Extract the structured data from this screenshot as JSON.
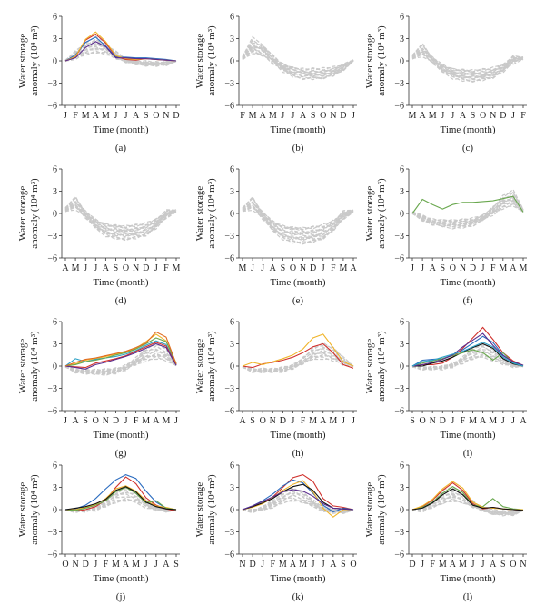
{
  "figure": {
    "y_label_line1": "Water storage",
    "y_label_line2": "anomaly (10⁴ m³)"
  },
  "colors": {
    "background_series": "#c9c9c9",
    "highlight": [
      "#2a6bbf",
      "#d0312d",
      "#f0b429",
      "#6aa84f",
      "#5b2d8e",
      "#2fa3c7",
      "#e06b1f",
      "#111111"
    ]
  },
  "chart_data": [
    {
      "panel": "(a)",
      "type": "line",
      "xlabel": "Time (month)",
      "ylim": [
        -6,
        6
      ],
      "yticks": [
        "6",
        "3",
        "0",
        "−3",
        "−6"
      ],
      "categories": [
        "J",
        "F",
        "M",
        "A",
        "M",
        "J",
        "J",
        "A",
        "S",
        "O",
        "N",
        "D"
      ],
      "background_count": 14,
      "series": [
        {
          "values": [
            0,
            0.5,
            2.8,
            3.6,
            2.4,
            0.6,
            0.2,
            0.1,
            0.3,
            0.2,
            0.1,
            0
          ],
          "color": "#d0312d"
        },
        {
          "values": [
            0,
            0.8,
            2.5,
            3.2,
            2.0,
            0.5,
            0.5,
            0.4,
            0.4,
            0.3,
            0.2,
            0
          ],
          "color": "#2a6bbf"
        },
        {
          "values": [
            0,
            0.6,
            2.9,
            3.9,
            2.6,
            0.7,
            0.3,
            0.2,
            0.3,
            0.2,
            0.1,
            0
          ],
          "color": "#f0b429"
        },
        {
          "values": [
            0,
            0.4,
            1.8,
            2.6,
            1.9,
            0.4,
            0.4,
            0.3,
            0.3,
            0.2,
            0.1,
            0
          ],
          "color": "#5b2d8e"
        }
      ]
    },
    {
      "panel": "(b)",
      "type": "line",
      "xlabel": "Time (month)",
      "ylim": [
        -6,
        6
      ],
      "yticks": [
        "6",
        "3",
        "0",
        "−3",
        "−6"
      ],
      "categories": [
        "F",
        "M",
        "A",
        "M",
        "J",
        "J",
        "A",
        "S",
        "O",
        "N",
        "D",
        "J"
      ],
      "background_count": 16,
      "series": []
    },
    {
      "panel": "(c)",
      "type": "line",
      "xlabel": "Time (month)",
      "ylim": [
        -6,
        6
      ],
      "yticks": [
        "6",
        "3",
        "0",
        "−3",
        "−6"
      ],
      "categories": [
        "M",
        "A",
        "M",
        "J",
        "J",
        "A",
        "S",
        "O",
        "N",
        "D",
        "J",
        "F"
      ],
      "background_count": 16,
      "series": []
    },
    {
      "panel": "(d)",
      "type": "line",
      "xlabel": "Time (month)",
      "ylim": [
        -6,
        6
      ],
      "yticks": [
        "6",
        "3",
        "0",
        "−3",
        "−6"
      ],
      "categories": [
        "A",
        "M",
        "J",
        "J",
        "A",
        "S",
        "O",
        "N",
        "D",
        "J",
        "F",
        "M"
      ],
      "background_count": 16,
      "series": []
    },
    {
      "panel": "(e)",
      "type": "line",
      "xlabel": "Time (month)",
      "ylim": [
        -6,
        6
      ],
      "yticks": [
        "6",
        "3",
        "0",
        "−3",
        "−6"
      ],
      "categories": [
        "M",
        "J",
        "J",
        "A",
        "S",
        "O",
        "N",
        "D",
        "J",
        "F",
        "M",
        "A"
      ],
      "background_count": 16,
      "series": []
    },
    {
      "panel": "(f)",
      "type": "line",
      "xlabel": "Time (month)",
      "ylim": [
        -6,
        6
      ],
      "yticks": [
        "6",
        "3",
        "0",
        "−3",
        "−6"
      ],
      "categories": [
        "J",
        "J",
        "A",
        "S",
        "O",
        "N",
        "D",
        "J",
        "F",
        "M",
        "A",
        "M"
      ],
      "background_count": 16,
      "series": [
        {
          "values": [
            0,
            1.9,
            1.2,
            0.6,
            1.2,
            1.5,
            1.5,
            1.6,
            1.7,
            2.0,
            2.3,
            0.2
          ],
          "color": "#6aa84f"
        }
      ]
    },
    {
      "panel": "(g)",
      "type": "line",
      "xlabel": "Time (month)",
      "ylim": [
        -6,
        6
      ],
      "yticks": [
        "6",
        "3",
        "0",
        "−3",
        "−6"
      ],
      "categories": [
        "J",
        "A",
        "S",
        "O",
        "N",
        "D",
        "J",
        "F",
        "M",
        "A",
        "M",
        "J"
      ],
      "background_count": 12,
      "series": [
        {
          "values": [
            0,
            0.3,
            0.8,
            1.0,
            1.3,
            1.6,
            1.9,
            2.4,
            3.3,
            4.3,
            3.4,
            0.3
          ],
          "color": "#f0b429"
        },
        {
          "values": [
            0,
            1.0,
            0.6,
            0.9,
            1.1,
            1.3,
            1.6,
            2.1,
            2.8,
            3.4,
            2.9,
            0.2
          ],
          "color": "#2fa3c7"
        },
        {
          "values": [
            0,
            -0.1,
            -0.2,
            0.4,
            0.7,
            1.0,
            1.4,
            2.0,
            2.6,
            3.2,
            2.7,
            0.2
          ],
          "color": "#d0312d"
        },
        {
          "values": [
            0,
            0.2,
            0.6,
            0.8,
            1.1,
            1.5,
            1.8,
            2.3,
            3.0,
            3.8,
            3.3,
            0.4
          ],
          "color": "#6aa84f"
        },
        {
          "values": [
            0,
            -0.2,
            -0.4,
            0.2,
            0.5,
            0.9,
            1.3,
            1.8,
            2.4,
            3.0,
            2.5,
            0.1
          ],
          "color": "#5b2d8e"
        },
        {
          "values": [
            0,
            0.5,
            0.9,
            1.1,
            1.4,
            1.7,
            2.0,
            2.5,
            3.1,
            4.6,
            3.9,
            0.3
          ],
          "color": "#e06b1f"
        }
      ]
    },
    {
      "panel": "(h)",
      "type": "line",
      "xlabel": "Time (month)",
      "ylim": [
        -6,
        6
      ],
      "yticks": [
        "6",
        "3",
        "0",
        "−3",
        "−6"
      ],
      "categories": [
        "A",
        "S",
        "O",
        "N",
        "D",
        "J",
        "F",
        "M",
        "A",
        "M",
        "J",
        "J"
      ],
      "background_count": 12,
      "series": [
        {
          "values": [
            0,
            -0.2,
            0.3,
            0.5,
            0.8,
            1.2,
            1.8,
            2.6,
            3.0,
            1.8,
            0.2,
            -0.3
          ],
          "color": "#d0312d"
        },
        {
          "values": [
            0,
            0.5,
            0.2,
            0.6,
            1.0,
            1.5,
            2.3,
            3.8,
            4.3,
            2.5,
            0.6,
            0.0
          ],
          "color": "#f0b429"
        }
      ]
    },
    {
      "panel": "(i)",
      "type": "line",
      "xlabel": "Time (month)",
      "ylim": [
        -6,
        6
      ],
      "yticks": [
        "6",
        "3",
        "0",
        "−3",
        "−6"
      ],
      "categories": [
        "S",
        "O",
        "N",
        "D",
        "J",
        "F",
        "M",
        "A",
        "M",
        "J",
        "J",
        "A"
      ],
      "background_count": 12,
      "series": [
        {
          "values": [
            0,
            0.8,
            0.9,
            1.0,
            1.5,
            2.2,
            3.1,
            4.0,
            3.2,
            1.5,
            0.5,
            0.1
          ],
          "color": "#2a6bbf"
        },
        {
          "values": [
            0,
            0.2,
            0.2,
            0.4,
            1.2,
            2.4,
            3.8,
            5.2,
            3.6,
            1.8,
            0.7,
            0.1
          ],
          "color": "#d0312d"
        },
        {
          "values": [
            0,
            0.0,
            0.4,
            0.7,
            1.2,
            1.9,
            2.5,
            3.0,
            2.4,
            1.0,
            0.3,
            0.0
          ],
          "color": "#111111"
        },
        {
          "values": [
            0,
            0.4,
            0.7,
            1.0,
            1.4,
            1.8,
            2.2,
            1.8,
            0.8,
            1.8,
            0.4,
            0.0
          ],
          "color": "#6aa84f"
        },
        {
          "values": [
            0,
            0.2,
            0.5,
            0.9,
            1.5,
            2.6,
            3.5,
            4.4,
            2.8,
            1.4,
            0.6,
            0.1
          ],
          "color": "#5b2d8e"
        },
        {
          "values": [
            0,
            0.6,
            0.8,
            1.2,
            1.6,
            2.0,
            2.6,
            3.2,
            2.6,
            1.2,
            0.4,
            0.0
          ],
          "color": "#2fa3c7"
        }
      ]
    },
    {
      "panel": "(j)",
      "type": "line",
      "xlabel": "Time (month)",
      "ylim": [
        -6,
        6
      ],
      "yticks": [
        "6",
        "3",
        "0",
        "−3",
        "−6"
      ],
      "categories": [
        "O",
        "N",
        "D",
        "J",
        "F",
        "M",
        "A",
        "M",
        "J",
        "J",
        "A",
        "S"
      ],
      "background_count": 12,
      "series": [
        {
          "values": [
            0,
            0.1,
            0.6,
            1.5,
            2.8,
            4.0,
            4.7,
            4.2,
            2.5,
            1.0,
            0.2,
            0.0
          ],
          "color": "#2a6bbf"
        },
        {
          "values": [
            0,
            -0.2,
            0.0,
            0.4,
            1.3,
            3.0,
            4.4,
            3.5,
            1.6,
            0.6,
            0.1,
            -0.2
          ],
          "color": "#d0312d"
        },
        {
          "values": [
            0,
            0.0,
            0.3,
            0.7,
            1.5,
            2.8,
            3.2,
            2.5,
            1.2,
            0.5,
            0.3,
            0.0
          ],
          "color": "#f0b429"
        },
        {
          "values": [
            0,
            -0.1,
            0.2,
            0.6,
            1.2,
            2.4,
            3.0,
            2.2,
            0.9,
            1.2,
            0.2,
            0.0
          ],
          "color": "#6aa84f"
        },
        {
          "values": [
            0,
            0.2,
            0.4,
            0.8,
            1.4,
            2.6,
            3.1,
            2.4,
            1.0,
            0.4,
            0.1,
            0.0
          ],
          "color": "#111111"
        }
      ]
    },
    {
      "panel": "(k)",
      "type": "line",
      "xlabel": "Time (month)",
      "ylim": [
        -6,
        6
      ],
      "yticks": [
        "6",
        "3",
        "0",
        "−3",
        "−6"
      ],
      "categories": [
        "N",
        "D",
        "J",
        "F",
        "M",
        "A",
        "M",
        "J",
        "J",
        "A",
        "S",
        "O"
      ],
      "background_count": 12,
      "series": [
        {
          "values": [
            0,
            0.4,
            0.9,
            1.7,
            3.0,
            4.3,
            4.7,
            3.8,
            1.5,
            0.5,
            0.3,
            0.0
          ],
          "color": "#d0312d"
        },
        {
          "values": [
            0,
            0.5,
            1.2,
            2.1,
            3.2,
            4.0,
            3.6,
            2.2,
            0.6,
            -0.3,
            0.2,
            0.0
          ],
          "color": "#2a6bbf"
        },
        {
          "values": [
            0,
            0.3,
            0.8,
            1.6,
            2.6,
            3.4,
            3.9,
            2.4,
            0.2,
            -1.0,
            0.0,
            0.0
          ],
          "color": "#f0b429"
        },
        {
          "values": [
            0,
            0.4,
            0.9,
            1.5,
            2.4,
            3.1,
            3.4,
            2.6,
            1.0,
            0.2,
            0.1,
            0.0
          ],
          "color": "#111111"
        },
        {
          "values": [
            0,
            0.5,
            1.1,
            1.7,
            2.4,
            2.7,
            2.5,
            1.8,
            0.8,
            0.2,
            0.1,
            0.0
          ],
          "color": "#5b2d8e"
        }
      ]
    },
    {
      "panel": "(l)",
      "type": "line",
      "xlabel": "Time (month)",
      "ylim": [
        -6,
        6
      ],
      "yticks": [
        "6",
        "3",
        "0",
        "−3",
        "−6"
      ],
      "categories": [
        "D",
        "J",
        "F",
        "M",
        "A",
        "M",
        "J",
        "J",
        "A",
        "S",
        "O",
        "N"
      ],
      "background_count": 14,
      "series": [
        {
          "values": [
            0,
            0.4,
            1.3,
            2.6,
            3.6,
            2.6,
            0.8,
            0.1,
            0.3,
            0.1,
            0.0,
            -0.1
          ],
          "color": "#d0312d"
        },
        {
          "values": [
            0,
            0.3,
            1.0,
            2.2,
            3.1,
            2.3,
            0.6,
            0.4,
            1.5,
            0.4,
            0.1,
            0.0
          ],
          "color": "#6aa84f"
        },
        {
          "values": [
            0,
            0.5,
            1.4,
            2.8,
            3.8,
            2.9,
            1.0,
            0.3,
            0.2,
            0.1,
            0.0,
            0.0
          ],
          "color": "#f0b429"
        },
        {
          "values": [
            0,
            0.2,
            0.9,
            2.0,
            2.8,
            2.0,
            0.6,
            0.2,
            0.3,
            0.1,
            0.0,
            -0.1
          ],
          "color": "#111111"
        }
      ]
    }
  ]
}
